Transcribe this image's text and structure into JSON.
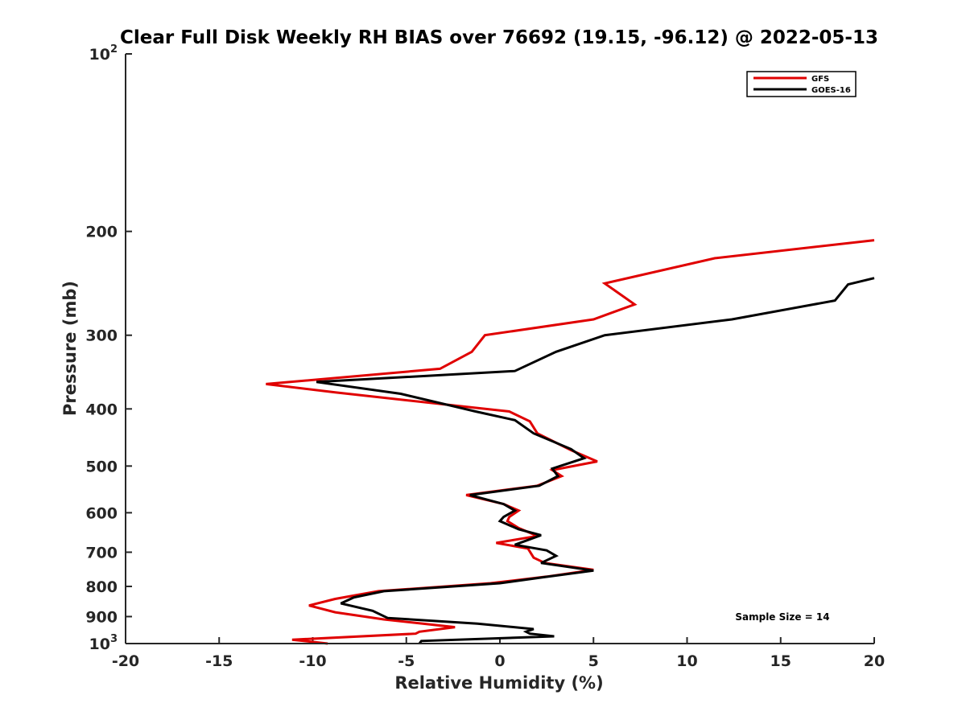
{
  "chart_data": {
    "type": "line",
    "title": "Clear Full Disk Weekly RH BIAS over 76692 (19.15, -96.12) @ 2022-05-13",
    "xlabel": "Relative Humidity (%)",
    "ylabel": "Pressure (mb)",
    "xlim": [
      -20,
      20
    ],
    "ylim": [
      100,
      1000
    ],
    "yscale": "log",
    "y_reversed": true,
    "x_ticks": [
      "-20",
      "-15",
      "-10",
      "-5",
      "0",
      "5",
      "10",
      "15",
      "20"
    ],
    "y_ticks": [
      {
        "value": 100,
        "base": "10",
        "exp": "2"
      },
      {
        "value": 200,
        "label": "200"
      },
      {
        "value": 300,
        "label": "300"
      },
      {
        "value": 400,
        "label": "400"
      },
      {
        "value": 500,
        "label": "500"
      },
      {
        "value": 600,
        "label": "600"
      },
      {
        "value": 700,
        "label": "700"
      },
      {
        "value": 800,
        "label": "800"
      },
      {
        "value": 900,
        "label": "900"
      },
      {
        "value": 1000,
        "base": "10",
        "exp": "3"
      }
    ],
    "legend_position": "top-right",
    "annotation": "Sample Size = 14",
    "series": [
      {
        "name": "GFS",
        "color": "#e00000",
        "points": [
          [
            20,
            207
          ],
          [
            11.5,
            222
          ],
          [
            5.6,
            245
          ],
          [
            7.2,
            266
          ],
          [
            5.0,
            282
          ],
          [
            -0.8,
            300
          ],
          [
            -1.5,
            320
          ],
          [
            -3.2,
            342
          ],
          [
            -12.5,
            363
          ],
          [
            -8.8,
            375
          ],
          [
            0.5,
            404
          ],
          [
            1.6,
            420
          ],
          [
            2.0,
            440
          ],
          [
            3.8,
            470
          ],
          [
            5.2,
            491
          ],
          [
            2.8,
            508
          ],
          [
            3.3,
            520
          ],
          [
            2.0,
            540
          ],
          [
            -1.8,
            560
          ],
          [
            0.2,
            580
          ],
          [
            1.0,
            595
          ],
          [
            0.5,
            610
          ],
          [
            0.4,
            620
          ],
          [
            1.0,
            637
          ],
          [
            2.0,
            657
          ],
          [
            -0.2,
            675
          ],
          [
            1.5,
            690
          ],
          [
            1.8,
            715
          ],
          [
            2.4,
            730
          ],
          [
            5.0,
            750
          ],
          [
            2.5,
            770
          ],
          [
            -0.5,
            790
          ],
          [
            -6.5,
            815
          ],
          [
            -8.8,
            840
          ],
          [
            -10.2,
            862
          ],
          [
            -8.8,
            885
          ],
          [
            -6.2,
            910
          ],
          [
            -2.4,
            938
          ],
          [
            -4.3,
            955
          ],
          [
            -4.5,
            962
          ],
          [
            -11.1,
            985
          ],
          [
            -9.2,
            1000
          ]
        ]
      },
      {
        "name": "GOES-16",
        "color": "#000000",
        "points": [
          [
            20,
            240
          ],
          [
            18.6,
            246
          ],
          [
            17.9,
            262
          ],
          [
            12.4,
            282
          ],
          [
            5.6,
            300
          ],
          [
            3.0,
            320
          ],
          [
            0.8,
            345
          ],
          [
            -9.8,
            360
          ],
          [
            -5.3,
            377
          ],
          [
            -1.3,
            404
          ],
          [
            0.8,
            418
          ],
          [
            1.8,
            440
          ],
          [
            3.8,
            468
          ],
          [
            4.5,
            485
          ],
          [
            2.8,
            505
          ],
          [
            3.1,
            520
          ],
          [
            2.1,
            540
          ],
          [
            -1.6,
            560
          ],
          [
            0.2,
            580
          ],
          [
            0.8,
            595
          ],
          [
            0.2,
            610
          ],
          [
            0.0,
            620
          ],
          [
            0.5,
            630
          ],
          [
            1.0,
            640
          ],
          [
            2.2,
            655
          ],
          [
            0.8,
            680
          ],
          [
            2.5,
            695
          ],
          [
            3.0,
            710
          ],
          [
            2.2,
            730
          ],
          [
            5.0,
            752
          ],
          [
            2.3,
            772
          ],
          [
            0.0,
            790
          ],
          [
            -6.2,
            815
          ],
          [
            -7.8,
            835
          ],
          [
            -8.5,
            855
          ],
          [
            -6.8,
            880
          ],
          [
            -6.0,
            905
          ],
          [
            -1.2,
            925
          ],
          [
            1.8,
            945
          ],
          [
            1.4,
            955
          ],
          [
            1.6,
            962
          ],
          [
            2.9,
            972
          ],
          [
            -4.2,
            990
          ],
          [
            -4.3,
            1000
          ]
        ]
      }
    ]
  }
}
